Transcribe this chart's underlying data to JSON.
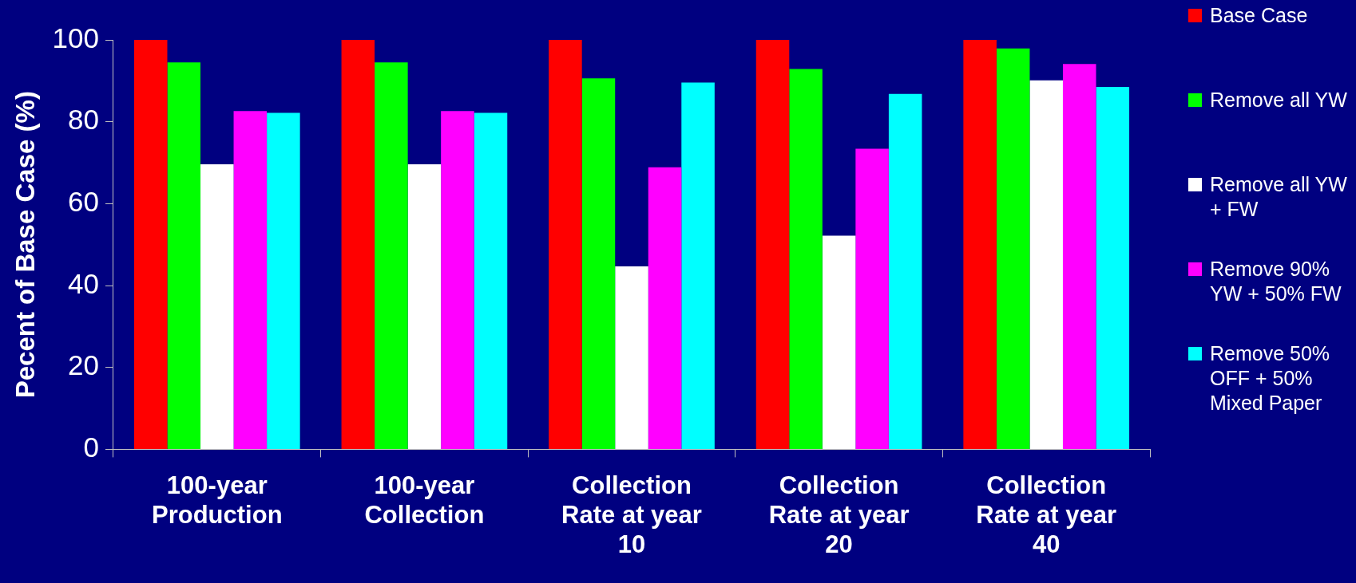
{
  "chart_data": {
    "type": "bar",
    "ylabel": "Pecent of Base Case (%)",
    "categories": [
      "100-year Production",
      "100-year Collection",
      "Collection Rate at year 10",
      "Collection Rate at year 20",
      "Collection Rate at year 40"
    ],
    "series": [
      {
        "name": "Base Case",
        "color": "#ff0000",
        "values": [
          100,
          100,
          100,
          100,
          100
        ]
      },
      {
        "name": "Remove all YW",
        "color": "#00ff00",
        "values": [
          94.5,
          94.5,
          90.6,
          92.9,
          97.9
        ]
      },
      {
        "name": "Remove all YW + FW",
        "color": "#ffffff",
        "values": [
          69.6,
          69.6,
          44.7,
          52.2,
          90.1
        ]
      },
      {
        "name": "Remove 90% YW + 50% FW",
        "color": "#ff00ff",
        "values": [
          82.6,
          82.6,
          68.9,
          73.4,
          94.1
        ]
      },
      {
        "name": "Remove 50% OFF + 50% Mixed Paper",
        "color": "#00ffff",
        "values": [
          82.2,
          82.2,
          89.6,
          86.8,
          88.5
        ]
      }
    ],
    "ylim": [
      0,
      100
    ],
    "yticks": [
      0,
      20,
      40,
      60,
      80,
      100
    ],
    "legend": "right"
  }
}
